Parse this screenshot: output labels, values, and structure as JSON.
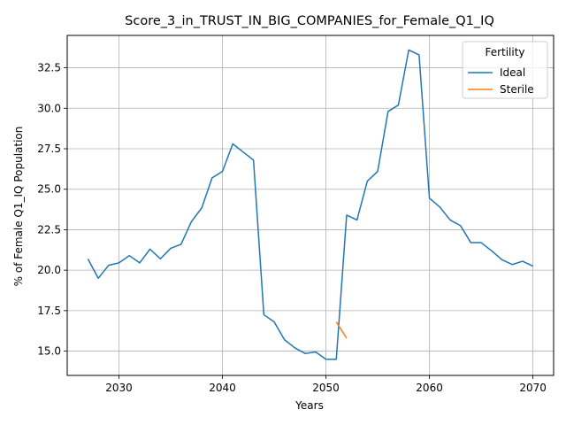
{
  "chart_data": {
    "type": "line",
    "title": "Score_3_in_TRUST_IN_BIG_COMPANIES_for_Female_Q1_IQ",
    "xlabel": "Years",
    "ylabel": "% of Female Q1_IQ Population",
    "xlim": [
      2025,
      2072
    ],
    "ylim": [
      13.5,
      34.5
    ],
    "xticks": [
      2030,
      2040,
      2050,
      2060,
      2070
    ],
    "yticks": [
      15.0,
      17.5,
      20.0,
      22.5,
      25.0,
      27.5,
      30.0,
      32.5
    ],
    "grid": true,
    "legend": {
      "title": "Fertility",
      "placement": "top-right"
    },
    "series": [
      {
        "name": "Ideal",
        "color": "#1f77b4",
        "x": [
          2027,
          2028,
          2029,
          2030,
          2031,
          2032,
          2033,
          2034,
          2035,
          2036,
          2037,
          2038,
          2039,
          2040,
          2041,
          2042,
          2043,
          2044,
          2045,
          2046,
          2047,
          2048,
          2049,
          2050,
          2051,
          2052,
          2053,
          2054,
          2055,
          2056,
          2057,
          2058,
          2059,
          2060,
          2061,
          2062,
          2063,
          2064,
          2065,
          2066,
          2067,
          2068,
          2069,
          2070
        ],
        "y": [
          20.7,
          19.5,
          20.3,
          20.45,
          20.9,
          20.45,
          21.3,
          20.7,
          21.35,
          21.6,
          23.0,
          23.85,
          25.7,
          26.1,
          27.8,
          27.3,
          26.8,
          17.25,
          16.8,
          15.7,
          15.2,
          14.85,
          14.95,
          14.5,
          14.5,
          23.4,
          23.1,
          25.5,
          26.1,
          29.8,
          30.2,
          33.6,
          33.3,
          24.45,
          23.9,
          23.1,
          22.75,
          21.7,
          21.7,
          21.2,
          20.65,
          20.35,
          20.55,
          20.25
        ]
      },
      {
        "name": "Sterile",
        "color": "#ff7f0e",
        "x": [
          2051,
          2052
        ],
        "y": [
          16.8,
          15.8
        ]
      }
    ]
  }
}
